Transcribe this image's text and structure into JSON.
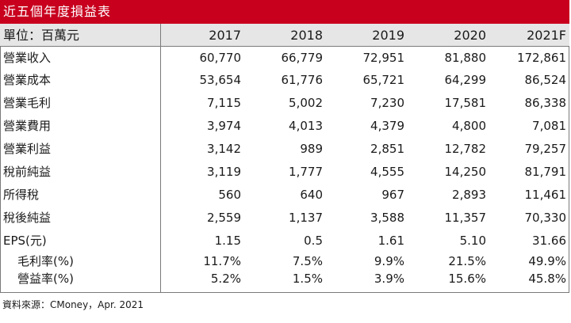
{
  "title": "近五個年度損益表",
  "unit_label": "單位：百萬元",
  "years": [
    "2017",
    "2018",
    "2019",
    "2020",
    "2021F"
  ],
  "rows": [
    {
      "label": "營業收入",
      "values": [
        "60,770",
        "66,779",
        "72,951",
        "81,880",
        "172,861"
      ]
    },
    {
      "label": "營業成本",
      "values": [
        "53,654",
        "61,776",
        "65,721",
        "64,299",
        "86,524"
      ]
    },
    {
      "label": "營業毛利",
      "values": [
        "7,115",
        "5,002",
        "7,230",
        "17,581",
        "86,338"
      ]
    },
    {
      "label": "營業費用",
      "values": [
        "3,974",
        "4,013",
        "4,379",
        "4,800",
        "7,081"
      ]
    },
    {
      "label": "營業利益",
      "values": [
        "3,142",
        "989",
        "2,851",
        "12,782",
        "79,257"
      ]
    },
    {
      "label": "稅前純益",
      "values": [
        "3,119",
        "1,777",
        "4,555",
        "14,250",
        "81,791"
      ]
    },
    {
      "label": "所得稅",
      "values": [
        "560",
        "640",
        "967",
        "2,893",
        "11,461"
      ]
    },
    {
      "label": "稅後純益",
      "values": [
        "2,559",
        "1,137",
        "3,588",
        "11,357",
        "70,330"
      ]
    },
    {
      "label": "EPS(元)",
      "values": [
        "1.15",
        "0.5",
        "1.61",
        "5.10",
        "31.66"
      ]
    },
    {
      "label": "毛利率(%)",
      "values": [
        "11.7%",
        "7.5%",
        "9.9%",
        "21.5%",
        "49.9%"
      ]
    },
    {
      "label": "營益率(%)",
      "values": [
        "5.2%",
        "1.5%",
        "3.9%",
        "15.6%",
        "45.8%"
      ]
    }
  ],
  "source": "資料來源：CMoney，Apr. 2021"
}
